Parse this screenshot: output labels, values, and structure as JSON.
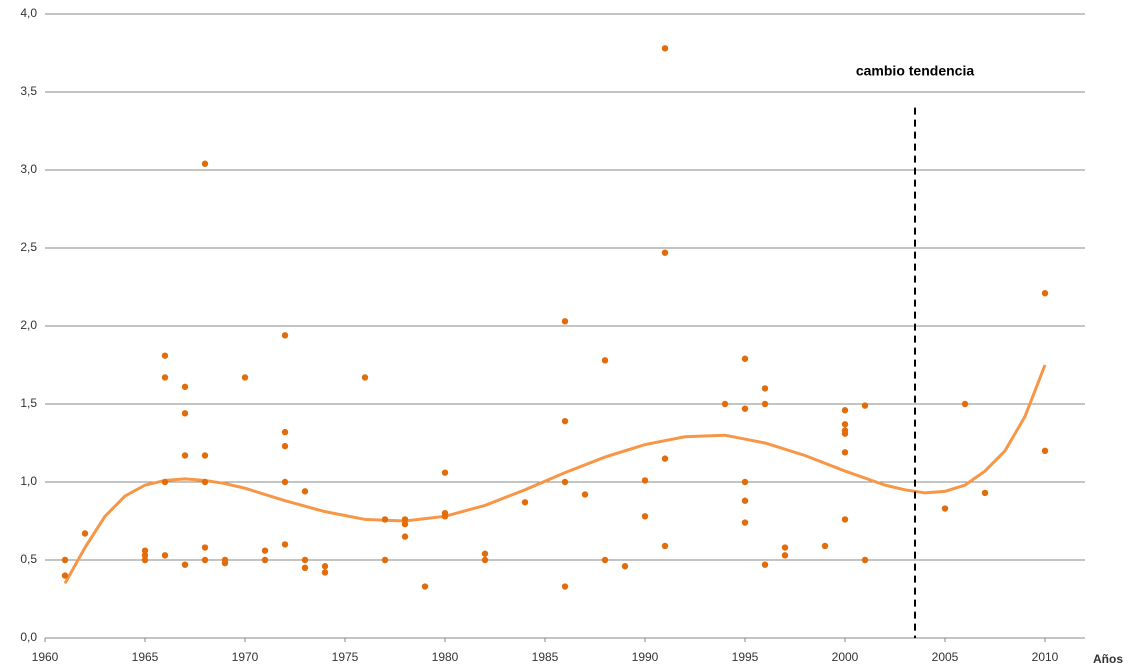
{
  "chart_data": {
    "type": "scatter",
    "x_label": "Años",
    "xlim": [
      1960,
      2012
    ],
    "ylim": [
      0,
      4
    ],
    "xticks": [
      1960,
      1965,
      1970,
      1975,
      1980,
      1985,
      1990,
      1995,
      2000,
      2005,
      2010
    ],
    "yticks": [
      {
        "value": 0,
        "label": "0,0"
      },
      {
        "value": 0.5,
        "label": "0,5"
      },
      {
        "value": 1,
        "label": "1,0"
      },
      {
        "value": 1.5,
        "label": "1,5"
      },
      {
        "value": 2,
        "label": "2,0"
      },
      {
        "value": 2.5,
        "label": "2,5"
      },
      {
        "value": 3,
        "label": "3,0"
      },
      {
        "value": 3.5,
        "label": "3,5"
      },
      {
        "value": 4,
        "label": "4,0"
      }
    ],
    "grid": true,
    "points": {
      "color": "#e36c0a",
      "x": [
        1961,
        1961,
        1962,
        1965,
        1965,
        1965,
        1966,
        1966,
        1966,
        1966,
        1967,
        1967,
        1967,
        1967,
        1968,
        1968,
        1968,
        1968,
        1968,
        1969,
        1969,
        1970,
        1971,
        1971,
        1972,
        1972,
        1972,
        1972,
        1972,
        1973,
        1973,
        1973,
        1974,
        1974,
        1976,
        1977,
        1977,
        1978,
        1978,
        1978,
        1979,
        1980,
        1980,
        1980,
        1982,
        1982,
        1984,
        1986,
        1986,
        1986,
        1986,
        1987,
        1988,
        1988,
        1989,
        1990,
        1990,
        1991,
        1991,
        1991,
        1991,
        1994,
        1995,
        1995,
        1995,
        1995,
        1995,
        1996,
        1996,
        1996,
        1997,
        1997,
        1999,
        2000,
        2000,
        2000,
        2000,
        2000,
        2000,
        2001,
        2001,
        2005,
        2006,
        2007,
        2010,
        2010
      ],
      "y": [
        0.5,
        0.4,
        0.67,
        0.56,
        0.53,
        0.5,
        1.81,
        1.67,
        1.0,
        0.53,
        1.61,
        1.44,
        1.17,
        0.47,
        3.04,
        1.17,
        1.0,
        0.58,
        0.5,
        0.5,
        0.48,
        1.67,
        0.56,
        0.5,
        1.94,
        1.32,
        1.23,
        1.0,
        0.6,
        0.94,
        0.5,
        0.45,
        0.46,
        0.42,
        1.67,
        0.76,
        0.5,
        0.76,
        0.73,
        0.65,
        0.33,
        1.06,
        0.8,
        0.78,
        0.54,
        0.5,
        0.87,
        2.03,
        1.39,
        1.0,
        0.33,
        0.92,
        1.78,
        0.5,
        0.46,
        1.01,
        0.78,
        3.78,
        2.47,
        1.15,
        0.59,
        1.5,
        1.79,
        1.47,
        1.0,
        0.88,
        0.74,
        1.6,
        1.5,
        0.47,
        0.58,
        0.53,
        0.59,
        1.46,
        1.37,
        1.33,
        1.31,
        1.19,
        0.76,
        1.49,
        0.5,
        0.83,
        1.5,
        0.93,
        2.21,
        1.2
      ]
    },
    "trend": {
      "color": "#f79646",
      "x": [
        1961,
        1962,
        1963,
        1964,
        1965,
        1966,
        1967,
        1968,
        1969,
        1970,
        1972,
        1974,
        1976,
        1978,
        1980,
        1982,
        1984,
        1986,
        1988,
        1990,
        1992,
        1994,
        1996,
        1998,
        2000,
        2002,
        2003,
        2004,
        2005,
        2006,
        2007,
        2008,
        2009,
        2010
      ],
      "y": [
        0.35,
        0.58,
        0.78,
        0.91,
        0.98,
        1.01,
        1.02,
        1.01,
        0.99,
        0.96,
        0.88,
        0.81,
        0.76,
        0.75,
        0.78,
        0.85,
        0.95,
        1.06,
        1.16,
        1.24,
        1.29,
        1.3,
        1.25,
        1.17,
        1.07,
        0.98,
        0.95,
        0.93,
        0.94,
        0.98,
        1.07,
        1.2,
        1.42,
        1.75
      ]
    },
    "threshold": {
      "x": 2003.5,
      "y_top": 3.4,
      "label": "cambio tendencia"
    }
  }
}
